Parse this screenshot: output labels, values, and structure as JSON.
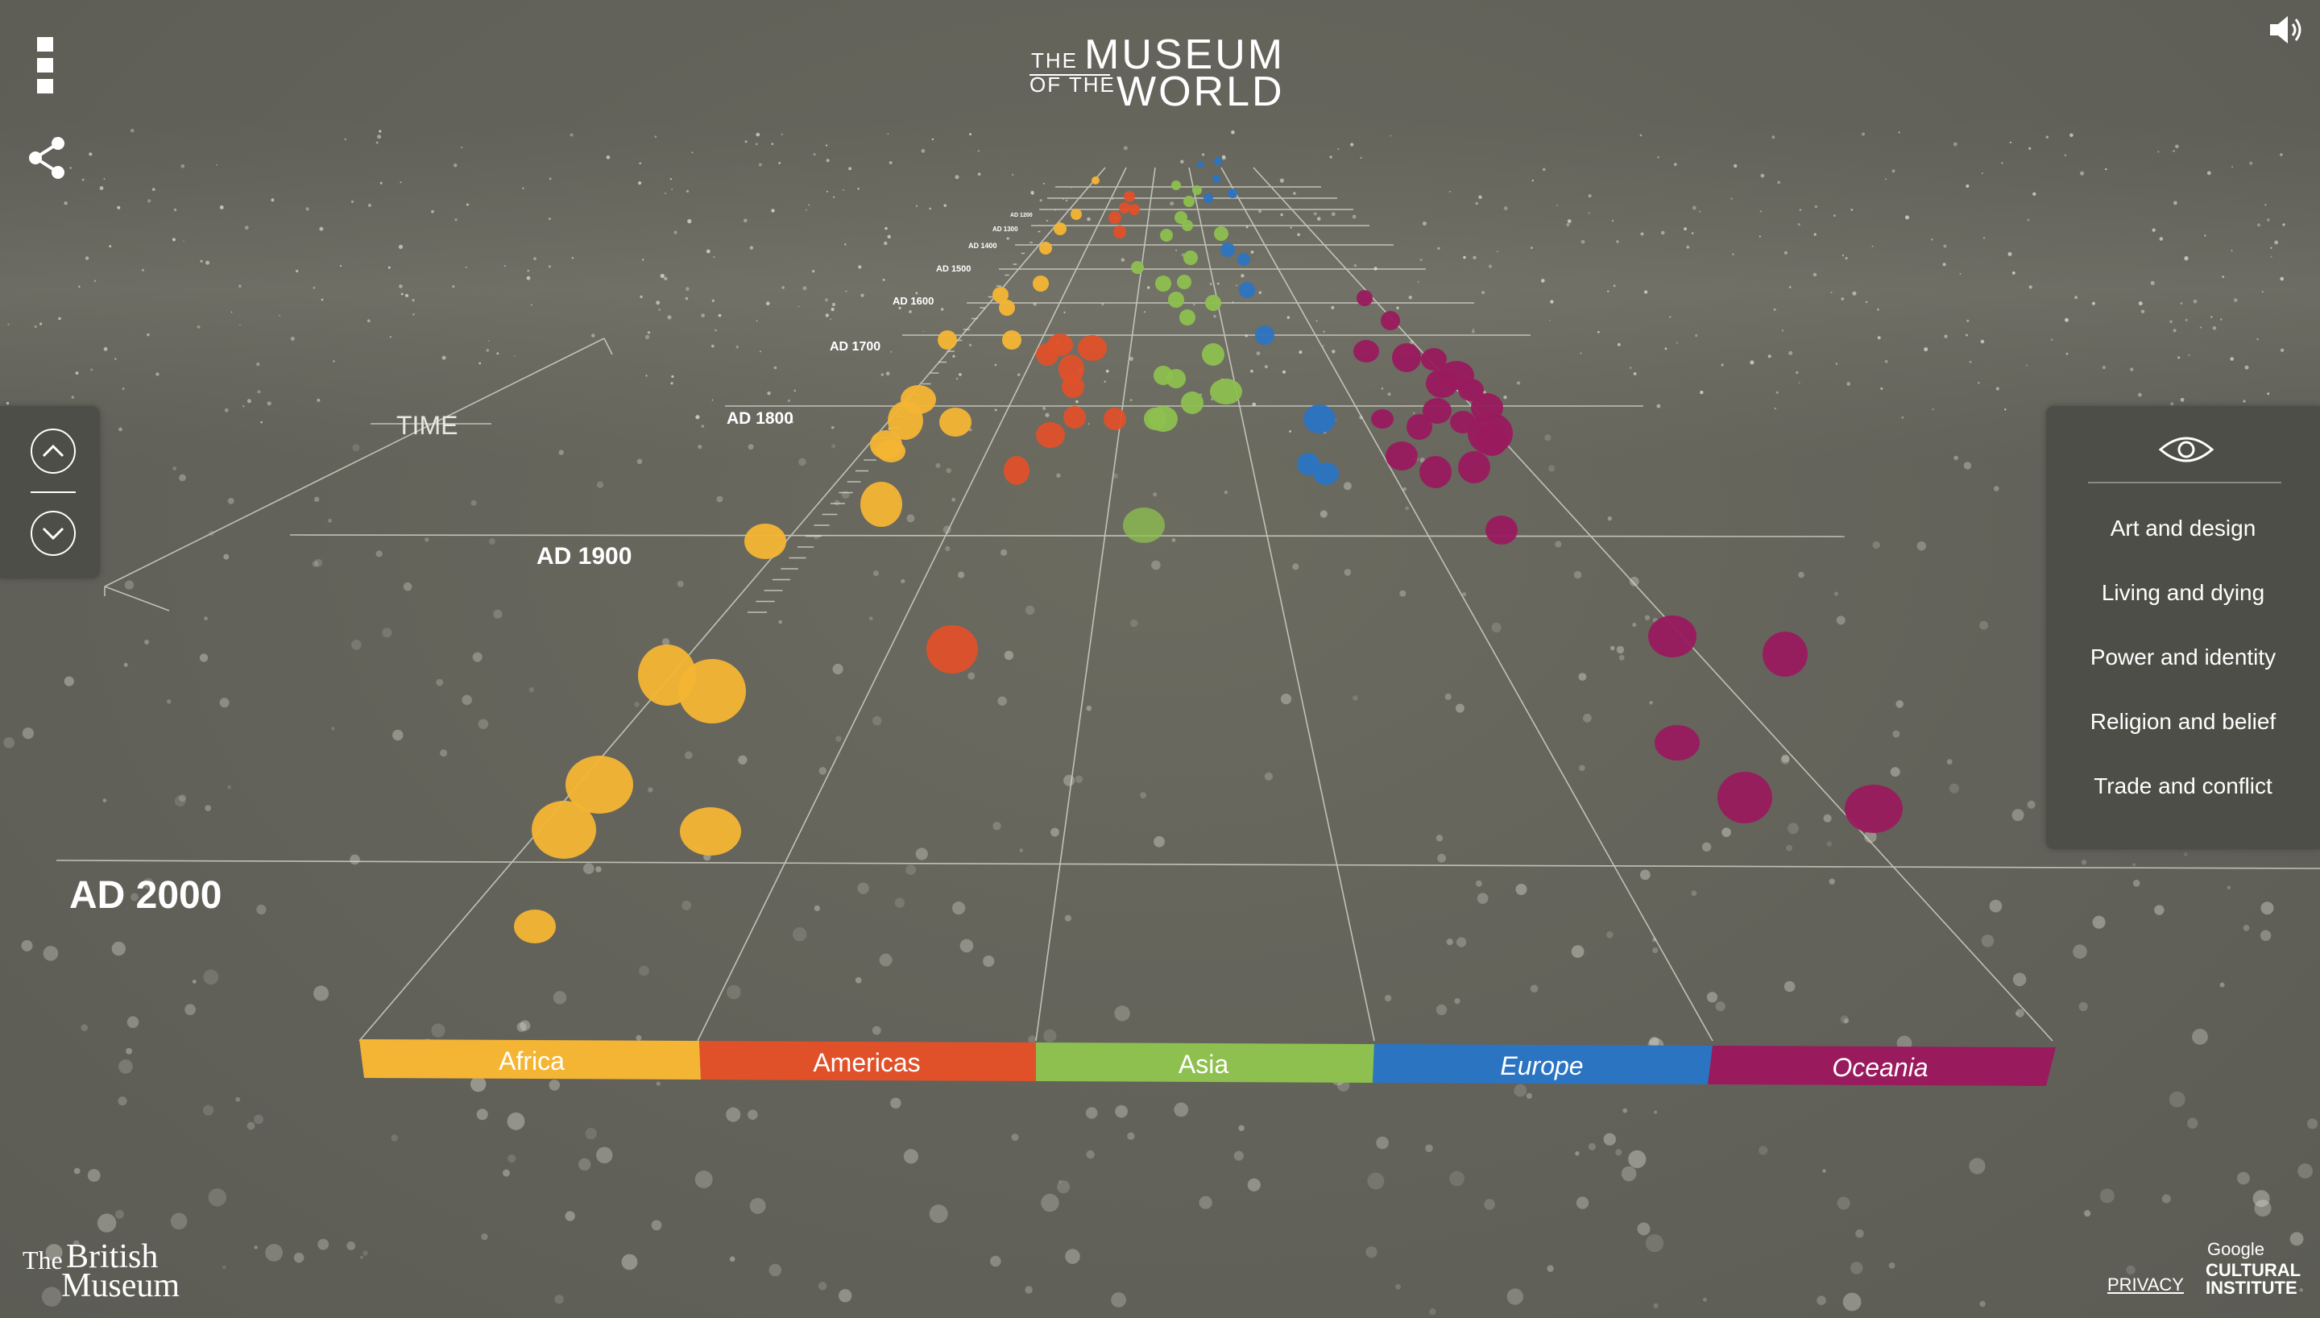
{
  "header": {
    "logo_the": "THE",
    "logo_museum": "MUSEUM",
    "logo_of_the": "OF THE",
    "logo_world": "WORLD"
  },
  "icons": {
    "menu": "menu-icon",
    "share": "share-icon",
    "sound": "speaker-icon",
    "up": "chevron-up-icon",
    "down": "chevron-down-icon",
    "eye": "eye-icon"
  },
  "timeline": {
    "axis_label": "TIME",
    "years": [
      "AD 2000",
      "AD 1900",
      "AD 1800",
      "AD 1700",
      "AD 1600",
      "AD 1500",
      "AD 1400",
      "AD 1300",
      "AD 1200"
    ]
  },
  "continents": [
    {
      "name": "Africa",
      "color": "#f4b534"
    },
    {
      "name": "Americas",
      "color": "#e0512a"
    },
    {
      "name": "Asia",
      "color": "#8dc04f"
    },
    {
      "name": "Europe",
      "color": "#2b74c2"
    },
    {
      "name": "Oceania",
      "color": "#9a1a5e"
    }
  ],
  "filters": {
    "items": [
      "Art and design",
      "Living and dying",
      "Power and identity",
      "Religion and belief",
      "Trade and conflict"
    ]
  },
  "footer": {
    "museum_the": "The",
    "museum_british": "British",
    "museum_museum": "Museum",
    "privacy": "PRIVACY",
    "google": "Google",
    "cultural": "CULTURAL",
    "institute": "INSTITUTE"
  }
}
